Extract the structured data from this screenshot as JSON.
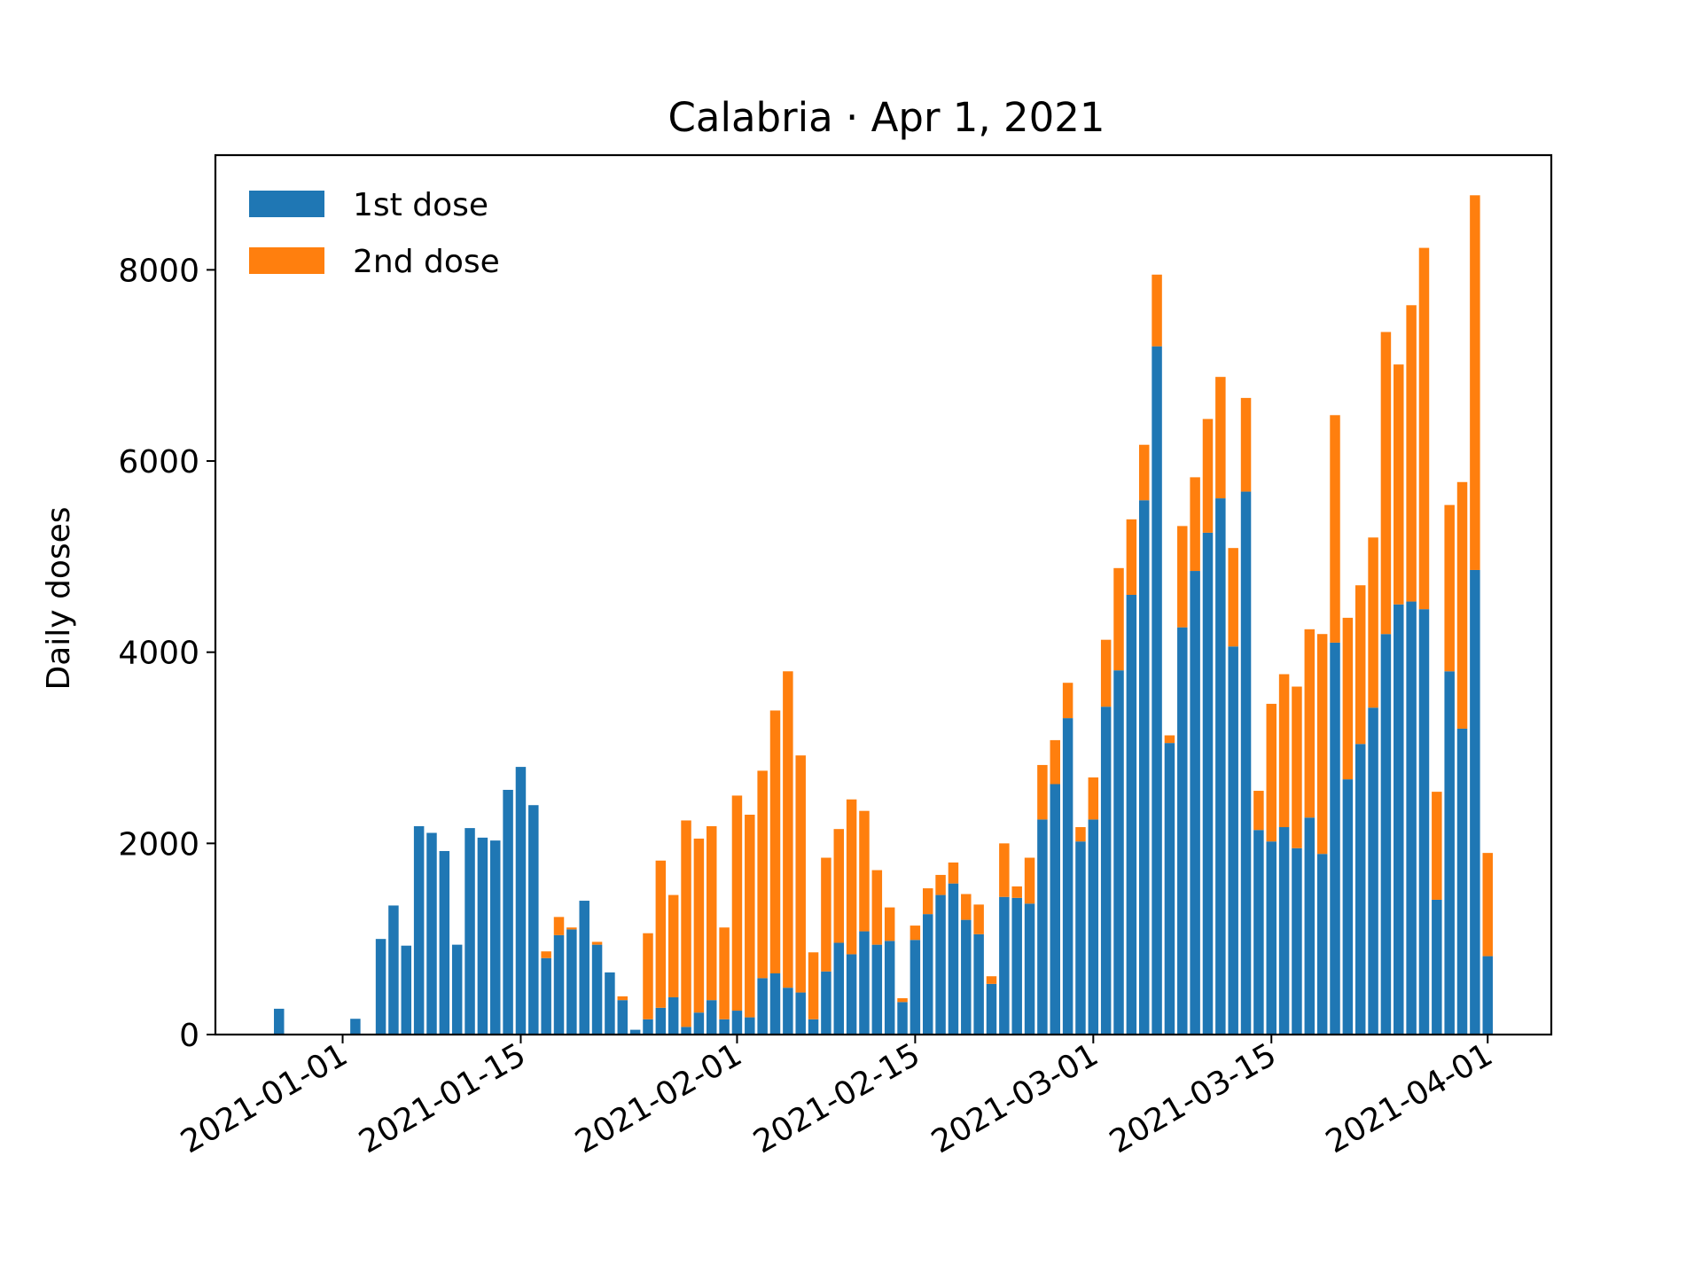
{
  "chart_data": {
    "type": "bar",
    "stacked": true,
    "title": "Calabria · Apr 1, 2021",
    "xlabel": "",
    "ylabel": "Daily doses",
    "ylim": [
      0,
      9200
    ],
    "yticks": [
      0,
      2000,
      4000,
      6000,
      8000
    ],
    "xlim": [
      "2020-12-22",
      "2021-04-06"
    ],
    "xticks": [
      "2021-01-01",
      "2021-01-15",
      "2021-02-01",
      "2021-02-15",
      "2021-03-01",
      "2021-03-15",
      "2021-04-01"
    ],
    "grid": false,
    "legend_position": "top-left",
    "series": [
      {
        "name": "1st dose",
        "color": "#1f77b4",
        "points": [
          [
            "2020-12-27",
            270
          ],
          [
            "2021-01-02",
            165
          ],
          [
            "2021-01-04",
            1000
          ],
          [
            "2021-01-05",
            1350
          ],
          [
            "2021-01-06",
            930
          ],
          [
            "2021-01-07",
            2180
          ],
          [
            "2021-01-08",
            2110
          ],
          [
            "2021-01-09",
            1920
          ],
          [
            "2021-01-10",
            940
          ],
          [
            "2021-01-11",
            2160
          ],
          [
            "2021-01-12",
            2060
          ],
          [
            "2021-01-13",
            2030
          ],
          [
            "2021-01-14",
            2560
          ],
          [
            "2021-01-15",
            2800
          ],
          [
            "2021-01-16",
            2400
          ],
          [
            "2021-01-17",
            800
          ],
          [
            "2021-01-18",
            1040
          ],
          [
            "2021-01-19",
            1100
          ],
          [
            "2021-01-20",
            1400
          ],
          [
            "2021-01-21",
            940
          ],
          [
            "2021-01-22",
            650
          ],
          [
            "2021-01-23",
            360
          ],
          [
            "2021-01-24",
            50
          ],
          [
            "2021-01-25",
            160
          ],
          [
            "2021-01-26",
            280
          ],
          [
            "2021-01-27",
            390
          ],
          [
            "2021-01-28",
            80
          ],
          [
            "2021-01-29",
            230
          ],
          [
            "2021-01-30",
            360
          ],
          [
            "2021-01-31",
            160
          ],
          [
            "2021-02-01",
            250
          ],
          [
            "2021-02-02",
            180
          ],
          [
            "2021-02-03",
            590
          ],
          [
            "2021-02-04",
            640
          ],
          [
            "2021-02-05",
            490
          ],
          [
            "2021-02-06",
            440
          ],
          [
            "2021-02-07",
            160
          ],
          [
            "2021-02-08",
            660
          ],
          [
            "2021-02-09",
            960
          ],
          [
            "2021-02-10",
            840
          ],
          [
            "2021-02-11",
            1080
          ],
          [
            "2021-02-12",
            940
          ],
          [
            "2021-02-13",
            980
          ],
          [
            "2021-02-14",
            340
          ],
          [
            "2021-02-15",
            990
          ],
          [
            "2021-02-16",
            1260
          ],
          [
            "2021-02-17",
            1460
          ],
          [
            "2021-02-18",
            1580
          ],
          [
            "2021-02-19",
            1200
          ],
          [
            "2021-02-20",
            1050
          ],
          [
            "2021-02-21",
            530
          ],
          [
            "2021-02-22",
            1440
          ],
          [
            "2021-02-23",
            1430
          ],
          [
            "2021-02-24",
            1370
          ],
          [
            "2021-02-25",
            2250
          ],
          [
            "2021-02-26",
            2620
          ],
          [
            "2021-02-27",
            3310
          ],
          [
            "2021-02-28",
            2020
          ],
          [
            "2021-03-01",
            2250
          ],
          [
            "2021-03-02",
            3430
          ],
          [
            "2021-03-03",
            3810
          ],
          [
            "2021-03-04",
            4600
          ],
          [
            "2021-03-05",
            5590
          ],
          [
            "2021-03-06",
            7200
          ],
          [
            "2021-03-07",
            3050
          ],
          [
            "2021-03-08",
            4260
          ],
          [
            "2021-03-09",
            4850
          ],
          [
            "2021-03-10",
            5250
          ],
          [
            "2021-03-11",
            5610
          ],
          [
            "2021-03-12",
            4060
          ],
          [
            "2021-03-13",
            5680
          ],
          [
            "2021-03-14",
            2140
          ],
          [
            "2021-03-15",
            2020
          ],
          [
            "2021-03-16",
            2170
          ],
          [
            "2021-03-17",
            1950
          ],
          [
            "2021-03-18",
            2270
          ],
          [
            "2021-03-19",
            1890
          ],
          [
            "2021-03-20",
            4100
          ],
          [
            "2021-03-21",
            2670
          ],
          [
            "2021-03-22",
            3040
          ],
          [
            "2021-03-23",
            3420
          ],
          [
            "2021-03-24",
            4190
          ],
          [
            "2021-03-25",
            4500
          ],
          [
            "2021-03-26",
            4530
          ],
          [
            "2021-03-27",
            4450
          ],
          [
            "2021-03-28",
            1410
          ],
          [
            "2021-03-29",
            3800
          ],
          [
            "2021-03-30",
            3200
          ],
          [
            "2021-03-31",
            4860
          ],
          [
            "2021-04-01",
            820
          ]
        ]
      },
      {
        "name": "2nd dose",
        "color": "#ff7f0e",
        "points": [
          [
            "2021-01-17",
            70
          ],
          [
            "2021-01-18",
            190
          ],
          [
            "2021-01-19",
            20
          ],
          [
            "2021-01-21",
            30
          ],
          [
            "2021-01-23",
            40
          ],
          [
            "2021-01-25",
            900
          ],
          [
            "2021-01-26",
            1540
          ],
          [
            "2021-01-27",
            1070
          ],
          [
            "2021-01-28",
            2160
          ],
          [
            "2021-01-29",
            1820
          ],
          [
            "2021-01-30",
            1820
          ],
          [
            "2021-01-31",
            960
          ],
          [
            "2021-02-01",
            2250
          ],
          [
            "2021-02-02",
            2120
          ],
          [
            "2021-02-03",
            2170
          ],
          [
            "2021-02-04",
            2750
          ],
          [
            "2021-02-05",
            3310
          ],
          [
            "2021-02-06",
            2480
          ],
          [
            "2021-02-07",
            700
          ],
          [
            "2021-02-08",
            1190
          ],
          [
            "2021-02-09",
            1190
          ],
          [
            "2021-02-10",
            1620
          ],
          [
            "2021-02-11",
            1260
          ],
          [
            "2021-02-12",
            780
          ],
          [
            "2021-02-13",
            350
          ],
          [
            "2021-02-14",
            40
          ],
          [
            "2021-02-15",
            150
          ],
          [
            "2021-02-16",
            270
          ],
          [
            "2021-02-17",
            210
          ],
          [
            "2021-02-18",
            220
          ],
          [
            "2021-02-19",
            270
          ],
          [
            "2021-02-20",
            310
          ],
          [
            "2021-02-21",
            80
          ],
          [
            "2021-02-22",
            560
          ],
          [
            "2021-02-23",
            120
          ],
          [
            "2021-02-24",
            480
          ],
          [
            "2021-02-25",
            570
          ],
          [
            "2021-02-26",
            460
          ],
          [
            "2021-02-27",
            370
          ],
          [
            "2021-02-28",
            150
          ],
          [
            "2021-03-01",
            440
          ],
          [
            "2021-03-02",
            700
          ],
          [
            "2021-03-03",
            1070
          ],
          [
            "2021-03-04",
            790
          ],
          [
            "2021-03-05",
            580
          ],
          [
            "2021-03-06",
            750
          ],
          [
            "2021-03-07",
            80
          ],
          [
            "2021-03-08",
            1060
          ],
          [
            "2021-03-09",
            980
          ],
          [
            "2021-03-10",
            1190
          ],
          [
            "2021-03-11",
            1270
          ],
          [
            "2021-03-12",
            1030
          ],
          [
            "2021-03-13",
            980
          ],
          [
            "2021-03-14",
            410
          ],
          [
            "2021-03-15",
            1440
          ],
          [
            "2021-03-16",
            1600
          ],
          [
            "2021-03-17",
            1690
          ],
          [
            "2021-03-18",
            1970
          ],
          [
            "2021-03-19",
            2300
          ],
          [
            "2021-03-20",
            2380
          ],
          [
            "2021-03-21",
            1690
          ],
          [
            "2021-03-22",
            1660
          ],
          [
            "2021-03-23",
            1780
          ],
          [
            "2021-03-24",
            3160
          ],
          [
            "2021-03-25",
            2510
          ],
          [
            "2021-03-26",
            3100
          ],
          [
            "2021-03-27",
            3780
          ],
          [
            "2021-03-28",
            1130
          ],
          [
            "2021-03-29",
            1740
          ],
          [
            "2021-03-30",
            2580
          ],
          [
            "2021-03-31",
            3920
          ],
          [
            "2021-04-01",
            1080
          ]
        ]
      }
    ]
  }
}
